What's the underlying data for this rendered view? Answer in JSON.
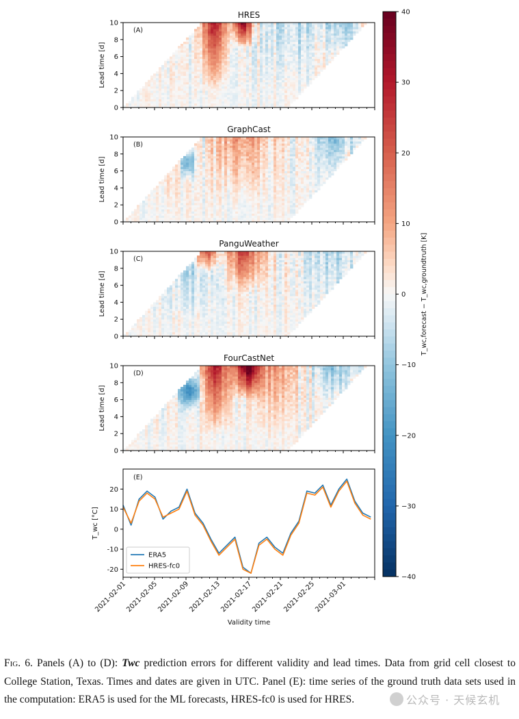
{
  "figure": {
    "cbar": {
      "min": -40,
      "max": 40,
      "ticks": [
        40,
        30,
        20,
        10,
        0,
        -10,
        -20,
        -30,
        -40
      ],
      "label": "T_wc,forecast − T_wc,groundtruth [K]"
    },
    "x_ticks": [
      "2021-02-01",
      "2021-02-05",
      "2021-02-09",
      "2021-02-13",
      "2021-02-17",
      "2021-02-21",
      "2021-02-25",
      "2021-03-01"
    ],
    "x_label": "Validity time",
    "heatmap_y_label": "Lead time [d]",
    "heatmap_y_ticks": [
      0,
      2,
      4,
      6,
      8,
      10
    ],
    "panels": [
      {
        "title": "HRES",
        "tag": "(A)"
      },
      {
        "title": "GraphCast",
        "tag": "(B)"
      },
      {
        "title": "PanguWeather",
        "tag": "(C)"
      },
      {
        "title": "FourCastNet",
        "tag": "(D)"
      }
    ],
    "panel_e": {
      "tag": "(E)",
      "y_label": "T_wc [°C]",
      "y_ticks": [
        20,
        10,
        0,
        -10,
        -20
      ]
    }
  },
  "chart_data": {
    "type": "line",
    "title": "",
    "xlabel": "Validity time",
    "ylabel": "T_wc [°C]",
    "ylim": [
      -24,
      30
    ],
    "x_range": [
      "2021-02-01",
      "2021-03-04"
    ],
    "x": [
      "02-01",
      "02-02",
      "02-03",
      "02-04",
      "02-05",
      "02-06",
      "02-07",
      "02-08",
      "02-09",
      "02-10",
      "02-11",
      "02-12",
      "02-13",
      "02-14",
      "02-15",
      "02-16",
      "02-17",
      "02-18",
      "02-19",
      "02-20",
      "02-21",
      "02-22",
      "02-23",
      "02-24",
      "02-25",
      "02-26",
      "02-27",
      "02-28",
      "03-01",
      "03-02",
      "03-03",
      "03-04"
    ],
    "series": [
      {
        "name": "ERA5",
        "color": "#1f77b4",
        "values": [
          12,
          2,
          15,
          19,
          16,
          5,
          9,
          11,
          20,
          8,
          3,
          -5,
          -12,
          -8,
          -4,
          -19,
          -22,
          -7,
          -4,
          -9,
          -12,
          -2,
          4,
          19,
          18,
          22,
          12,
          20,
          25,
          14,
          8,
          6
        ]
      },
      {
        "name": "HRES-fc0",
        "color": "#ff7f0e",
        "values": [
          11,
          3,
          14,
          18,
          15,
          6,
          8,
          10,
          19,
          7,
          2,
          -6,
          -13,
          -9,
          -5,
          -20,
          -22,
          -8,
          -5,
          -10,
          -13,
          -3,
          3,
          18,
          17,
          21,
          11,
          19,
          24,
          13,
          7,
          5
        ]
      }
    ],
    "legend": "bottom-left",
    "panel_tag": "(E)",
    "heatmaps": [
      {
        "name": "HRES",
        "type": "heatmap",
        "xlabel": "Validity time",
        "ylabel": "Lead time [d]",
        "ylim": [
          0,
          10
        ],
        "zlim": [
          -40,
          40
        ],
        "peak_error": 40
      },
      {
        "name": "GraphCast",
        "type": "heatmap",
        "xlabel": "Validity time",
        "ylabel": "Lead time [d]",
        "ylim": [
          0,
          10
        ],
        "zlim": [
          -40,
          40
        ],
        "peak_error": 18
      },
      {
        "name": "PanguWeather",
        "type": "heatmap",
        "xlabel": "Validity time",
        "ylabel": "Lead time [d]",
        "ylim": [
          0,
          10
        ],
        "zlim": [
          -40,
          40
        ],
        "peak_error": 30
      },
      {
        "name": "FourCastNet",
        "type": "heatmap",
        "xlabel": "Validity time",
        "ylabel": "Lead time [d]",
        "ylim": [
          0,
          10
        ],
        "zlim": [
          -40,
          40
        ],
        "peak_error": 40
      }
    ]
  },
  "caption": {
    "label": "Fig. 6.",
    "text_1": " Panels (A) to (D): ",
    "symbol": "Twc",
    "text_2": " prediction errors for different validity and lead times. Data from grid cell closest to College Station, Texas. Times and dates are given in UTC. Panel (E): time series of the ground truth data sets used in the computation: ERA5 is used for the ML forecasts, HRES-fc0 is used for HRES."
  },
  "watermark": "公众号 · 天候玄机"
}
